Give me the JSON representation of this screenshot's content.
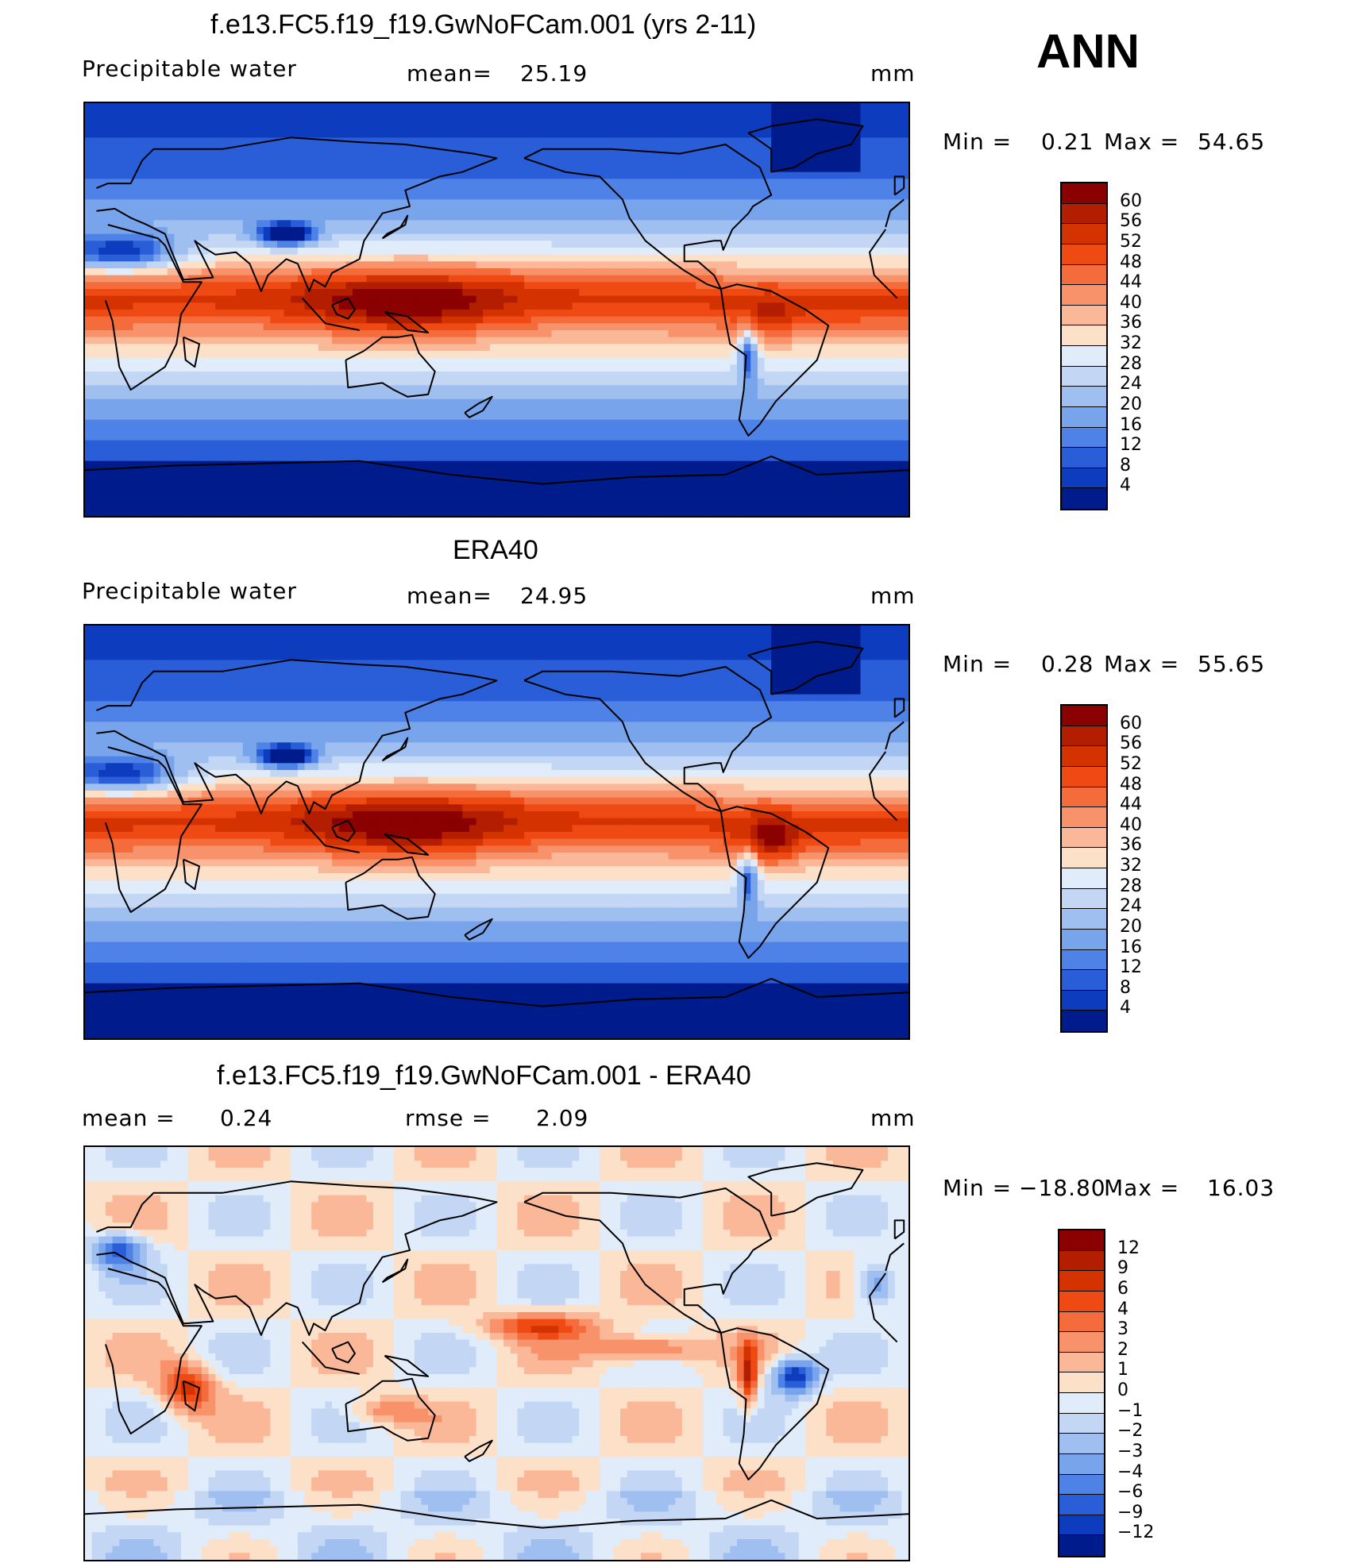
{
  "season_label": "ANN",
  "chart_data": [
    {
      "type": "heatmap",
      "title": "f.e13.FC5.f19_f19.GwNoFCam.001 (yrs 2-11)",
      "left_label": "Precipitable  water",
      "stat1_label": "mean=",
      "stat1_value": "25.19",
      "stat2_label": "",
      "stat2_value": "",
      "units": "mm",
      "min_label": "Min  =",
      "min_value": "0.21",
      "max_label": "Max  =",
      "max_value": "54.65",
      "legend_ticks": [
        "60",
        "56",
        "52",
        "48",
        "44",
        "40",
        "36",
        "32",
        "28",
        "24",
        "20",
        "16",
        "12",
        "8",
        "4"
      ],
      "legend_colors": [
        "#8b0000",
        "#b41e00",
        "#d43200",
        "#f04a14",
        "#f46c3c",
        "#f8926a",
        "#fbb898",
        "#fde0c8",
        "#e0ecfa",
        "#c3d7f5",
        "#9ebff0",
        "#78a4ec",
        "#4f82e6",
        "#2a5ed8",
        "#0d3cbe",
        "#001b8c"
      ],
      "field": "tropical_moist_model"
    },
    {
      "type": "heatmap",
      "title": "ERA40",
      "left_label": "Precipitable  water",
      "stat1_label": "mean=",
      "stat1_value": "24.95",
      "stat2_label": "",
      "stat2_value": "",
      "units": "mm",
      "min_label": "Min  =",
      "min_value": "0.28",
      "max_label": "Max  =",
      "max_value": "55.65",
      "legend_ticks": [
        "60",
        "56",
        "52",
        "48",
        "44",
        "40",
        "36",
        "32",
        "28",
        "24",
        "20",
        "16",
        "12",
        "8",
        "4"
      ],
      "legend_colors": [
        "#8b0000",
        "#b41e00",
        "#d43200",
        "#f04a14",
        "#f46c3c",
        "#f8926a",
        "#fbb898",
        "#fde0c8",
        "#e0ecfa",
        "#c3d7f5",
        "#9ebff0",
        "#78a4ec",
        "#4f82e6",
        "#2a5ed8",
        "#0d3cbe",
        "#001b8c"
      ],
      "field": "tropical_moist_obs"
    },
    {
      "type": "heatmap",
      "title": "f.e13.FC5.f19_f19.GwNoFCam.001 - ERA40",
      "left_label": "mean  =",
      "left_value": "0.24",
      "stat1_label": "rmse  =",
      "stat1_value": "2.09",
      "stat2_label": "",
      "stat2_value": "",
      "units": "mm",
      "min_label": "Min  =",
      "min_value": "−18.80",
      "max_label": "Max  =",
      "max_value": "16.03",
      "legend_ticks": [
        "12",
        "9",
        "6",
        "4",
        "3",
        "2",
        "1",
        "0",
        "−1",
        "−2",
        "−3",
        "−4",
        "−6",
        "−9",
        "−12"
      ],
      "legend_colors": [
        "#8b0000",
        "#b41e00",
        "#d43200",
        "#f04a14",
        "#f46c3c",
        "#f8926a",
        "#fbb898",
        "#fde0c8",
        "#e0ecfa",
        "#c3d7f5",
        "#9ebff0",
        "#78a4ec",
        "#4f82e6",
        "#2a5ed8",
        "#0d3cbe",
        "#001b8c"
      ],
      "field": "difference"
    }
  ]
}
